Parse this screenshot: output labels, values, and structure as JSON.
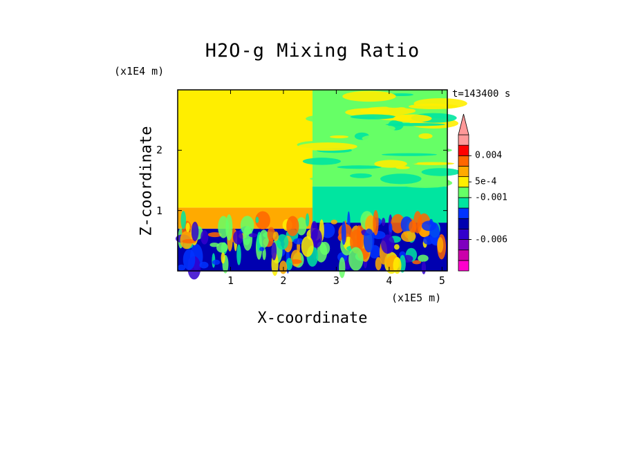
{
  "chart_data": {
    "type": "heatmap",
    "title": "H2O-g Mixing Ratio",
    "xlabel": "X-coordinate",
    "ylabel": "Z-coordinate",
    "x_unit": "(x1E5 m)",
    "y_unit": "(x1E4 m)",
    "time_label": "t=143400 s",
    "x_ticks": [
      "1",
      "2",
      "3",
      "4",
      "5"
    ],
    "x_tick_values": [
      1,
      2,
      3,
      4,
      5
    ],
    "y_ticks": [
      "1",
      "2"
    ],
    "y_tick_values": [
      1,
      2
    ],
    "xlim": [
      0,
      5.1
    ],
    "ylim": [
      0,
      3.0
    ],
    "colorbar": {
      "colors": [
        "#ff00cc",
        "#cc00aa",
        "#7f00bf",
        "#3300cc",
        "#0000b0",
        "#0033ff",
        "#00e5a0",
        "#66ff66",
        "#ffee00",
        "#ffaa00",
        "#ff6600",
        "#ff0000",
        "#ff9999"
      ],
      "tick_labels": [
        "0.004",
        "5e-4",
        "-0.001",
        "-0.006"
      ],
      "tick_levels": [
        11,
        8.5,
        7,
        3
      ],
      "extend_top": true,
      "extend_top_color": "#ff9999"
    },
    "regions": [
      {
        "x": [
          0,
          2.55
        ],
        "z": [
          0,
          0.7
        ],
        "level": 4
      },
      {
        "x": [
          2.55,
          5.1
        ],
        "z": [
          0,
          0.8
        ],
        "level": 4
      },
      {
        "x": [
          0,
          2.55
        ],
        "z": [
          0.7,
          1.05
        ],
        "level": 9
      },
      {
        "x": [
          2.55,
          5.1
        ],
        "z": [
          0.8,
          1.4
        ],
        "level": 6
      },
      {
        "x": [
          0,
          2.55
        ],
        "z": [
          1.05,
          3.0
        ],
        "level": 8
      },
      {
        "x": [
          2.55,
          5.1
        ],
        "z": [
          1.4,
          3.0
        ],
        "level": 7
      }
    ]
  }
}
